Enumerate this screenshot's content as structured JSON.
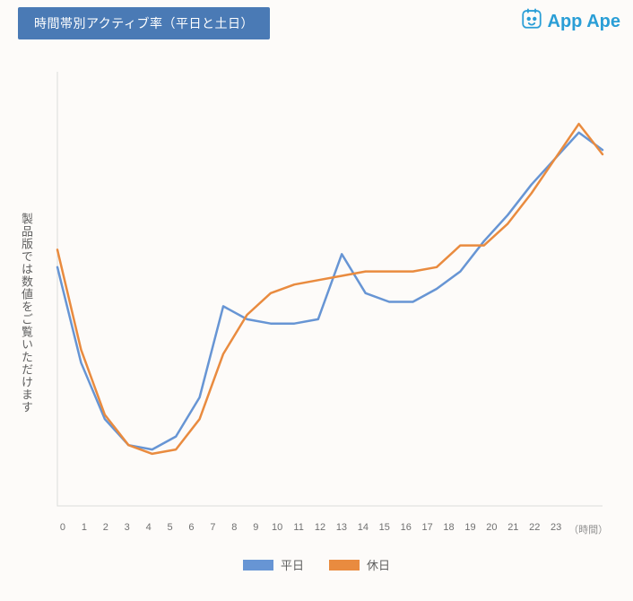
{
  "header": {
    "title": "時間帯別アクティブ率（平日と土日）",
    "title_bg": "#4a7ab5",
    "title_color": "#ffffff",
    "logo_text": "App Ape",
    "logo_color": "#2a9ed6"
  },
  "chart": {
    "type": "line",
    "ylabel": "製品版では数値をご覧いただけます",
    "xunit": "（時間）",
    "background_color": "#fdfbf9",
    "axis_color": "#dcdcdc",
    "line_width": 2.5,
    "x": [
      0,
      1,
      2,
      3,
      4,
      5,
      6,
      7,
      8,
      9,
      10,
      11,
      12,
      13,
      14,
      15,
      16,
      17,
      18,
      19,
      20,
      21,
      22,
      23
    ],
    "ylim": [
      0,
      100
    ],
    "series": [
      {
        "name": "weekday",
        "label": "平日",
        "color": "#6795d4",
        "values": [
          55,
          33,
          20,
          14,
          13,
          16,
          25,
          46,
          43,
          42,
          42,
          43,
          58,
          49,
          47,
          47,
          50,
          54,
          61,
          67,
          74,
          80,
          86,
          82
        ]
      },
      {
        "name": "holiday",
        "label": "休日",
        "color": "#e98b3f",
        "values": [
          59,
          36,
          21,
          14,
          12,
          13,
          20,
          35,
          44,
          49,
          51,
          52,
          53,
          54,
          54,
          54,
          55,
          60,
          60,
          65,
          72,
          80,
          88,
          81
        ]
      }
    ],
    "legend_swatch_w": 34,
    "legend_swatch_h": 12
  }
}
